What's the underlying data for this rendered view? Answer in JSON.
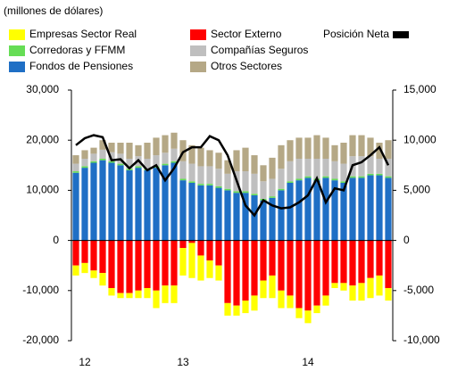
{
  "chart_data": {
    "type": "bar",
    "subtitle": "(millones de dólares)",
    "categories": [
      null,
      "12",
      null,
      null,
      null,
      null,
      null,
      null,
      null,
      null,
      null,
      null,
      "13",
      null,
      null,
      null,
      null,
      null,
      null,
      null,
      null,
      null,
      null,
      null,
      null,
      null,
      "14",
      null,
      null,
      null,
      null,
      null,
      null,
      null,
      null,
      null
    ],
    "series": [
      {
        "name": "Fondos de Pensiones",
        "color": "#1f6fc5",
        "values": [
          13500,
          14500,
          15500,
          16000,
          15500,
          15000,
          14000,
          14500,
          14000,
          14500,
          15000,
          15500,
          12000,
          11500,
          11000,
          11000,
          10500,
          10000,
          9500,
          9500,
          9000,
          8000,
          8500,
          10000,
          11500,
          12000,
          12500,
          12000,
          12500,
          12000,
          11500,
          12500,
          12500,
          13000,
          13000,
          12500
        ]
      },
      {
        "name": "Corredoras y FFMM",
        "color": "#66dd55",
        "values": [
          300,
          300,
          300,
          300,
          300,
          300,
          300,
          300,
          300,
          300,
          300,
          300,
          300,
          300,
          300,
          300,
          300,
          300,
          300,
          300,
          300,
          300,
          300,
          300,
          300,
          300,
          300,
          300,
          300,
          300,
          300,
          300,
          300,
          300,
          300,
          300
        ]
      },
      {
        "name": "Compañías Seguros",
        "color": "#bfbfbf",
        "values": [
          1500,
          1500,
          1500,
          1800,
          1800,
          2000,
          2000,
          2000,
          2000,
          2200,
          2200,
          2500,
          3500,
          3500,
          3500,
          3500,
          3500,
          3000,
          4000,
          4000,
          4000,
          3500,
          3500,
          4000,
          4000,
          4000,
          3500,
          4000,
          3500,
          3500,
          3500,
          4000,
          4000,
          3500,
          3000,
          3500
        ]
      },
      {
        "name": "Otros Sectores",
        "color": "#b5a886",
        "values": [
          1700,
          1700,
          1200,
          1900,
          1900,
          2200,
          3200,
          2200,
          3200,
          3500,
          3500,
          3200,
          4200,
          3700,
          3700,
          3200,
          3200,
          2700,
          4200,
          4700,
          3700,
          3200,
          4200,
          4700,
          4200,
          4200,
          4200,
          4700,
          4200,
          3200,
          4200,
          4200,
          4200,
          3700,
          3200,
          3700
        ]
      },
      {
        "name": "Sector Externo",
        "color": "#ff0000",
        "values": [
          -5000,
          -4500,
          -6000,
          -6500,
          -9500,
          -10500,
          -10500,
          -10000,
          -9500,
          -10000,
          -9000,
          -9000,
          -1500,
          -500,
          -3000,
          -4000,
          -5000,
          -12500,
          -13000,
          -12000,
          -11000,
          -8000,
          -7000,
          -10000,
          -11000,
          -13500,
          -14000,
          -13000,
          -11000,
          -8500,
          -8500,
          -9000,
          -8500,
          -7500,
          -7000,
          -9500
        ]
      },
      {
        "name": "Empresas Sector Real",
        "color": "#ffff00",
        "values": [
          -2000,
          -2000,
          -1500,
          -2500,
          -1500,
          -1000,
          -1000,
          -1500,
          -2000,
          -3500,
          -3500,
          -3500,
          -5500,
          -7000,
          -5000,
          -3500,
          -3000,
          -2500,
          -2000,
          -2500,
          -3000,
          -3500,
          -4500,
          -3500,
          -2500,
          -2000,
          -2500,
          -1500,
          -2000,
          -1000,
          -1500,
          -3000,
          -3500,
          -4000,
          -4000,
          -2500
        ]
      },
      {
        "name": "Posición Neta",
        "color": "#000000",
        "type": "line",
        "axis": "y2",
        "values": [
          9500,
          10200,
          10500,
          10300,
          8000,
          8100,
          7200,
          8000,
          7000,
          7500,
          6000,
          7200,
          8800,
          9300,
          9300,
          10400,
          10000,
          8500,
          6000,
          3500,
          2500,
          4000,
          3500,
          3200,
          3300,
          3800,
          4500,
          6200,
          3800,
          5200,
          5000,
          7500,
          7800,
          8500,
          9300,
          7500
        ]
      }
    ],
    "ylim": [
      -20000,
      30000
    ],
    "yticks": [
      {
        "value": -20000,
        "label": "-20,000"
      },
      {
        "value": -10000,
        "label": "-10,000"
      },
      0,
      {
        "value": 10000,
        "label": "10,000"
      },
      {
        "value": 20000,
        "label": "20,000"
      },
      {
        "value": 30000,
        "label": "30,000"
      }
    ],
    "y2lim": [
      -10000,
      15000
    ],
    "y2ticks": [
      {
        "value": -10000,
        "label": "-10,000"
      },
      {
        "value": -5000,
        "label": "-5,000"
      },
      0,
      {
        "value": 5000,
        "label": "5,000"
      },
      {
        "value": 10000,
        "label": "10,000"
      },
      {
        "value": 15000,
        "label": "15,000"
      }
    ],
    "grid": false
  }
}
